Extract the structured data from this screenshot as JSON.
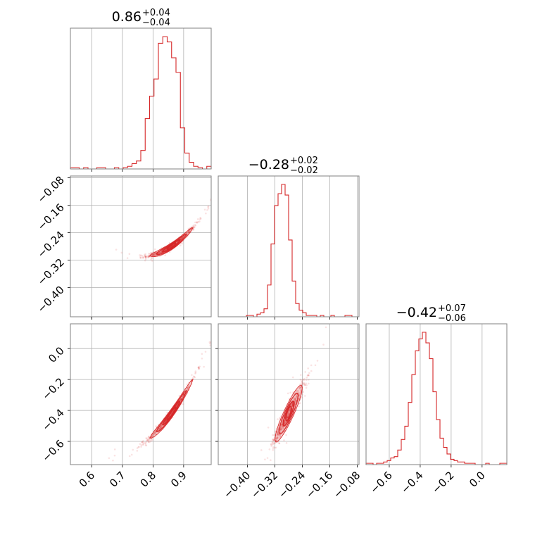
{
  "chart_data": {
    "type": "corner",
    "colors": {
      "main": "#d62728",
      "grid": "#b0b0b0",
      "frame": "#808080"
    },
    "grid": true,
    "params": [
      {
        "title": {
          "median": "0.86",
          "plus": "+0.04",
          "minus": "−0.04"
        },
        "range": [
          0.53,
          0.99
        ],
        "ticks": [
          0.6,
          0.7,
          0.8,
          0.9
        ],
        "tick_labels": [
          "0.6",
          "0.7",
          "0.8",
          "0.9"
        ]
      },
      {
        "title": {
          "median": "−0.28",
          "plus": "+0.02",
          "minus": "−0.02"
        },
        "range": [
          -0.485,
          -0.075
        ],
        "ticks": [
          -0.4,
          -0.32,
          -0.24,
          -0.16,
          -0.08
        ],
        "tick_labels": [
          "−0.40",
          "−0.32",
          "−0.24",
          "−0.16",
          "−0.08"
        ]
      },
      {
        "title": {
          "median": "−0.42",
          "plus": "+0.07",
          "minus": "−0.06"
        },
        "range": [
          -0.75,
          0.16
        ],
        "ticks": [
          -0.6,
          -0.4,
          -0.2,
          0.0
        ],
        "tick_labels": [
          "−0.6",
          "−0.4",
          "−0.2",
          "0.0"
        ]
      }
    ],
    "histograms": [
      {
        "param": 0,
        "range": [
          0.53,
          0.99
        ],
        "counts": [
          1,
          1,
          0,
          1,
          0,
          0,
          1,
          1,
          0,
          0,
          1,
          0,
          1,
          2,
          4,
          6,
          14,
          38,
          55,
          68,
          95,
          100,
          96,
          84,
          73,
          31,
          12,
          5,
          2,
          1,
          0,
          2
        ]
      },
      {
        "param": 1,
        "range": [
          -0.485,
          -0.075
        ],
        "counts": [
          0,
          0,
          0,
          0,
          0,
          0,
          0,
          0,
          1,
          1,
          0,
          2,
          3,
          6,
          24,
          55,
          84,
          93,
          100,
          92,
          58,
          27,
          10,
          5,
          3,
          1,
          1,
          1,
          0,
          1,
          0,
          0,
          1,
          0,
          0,
          0,
          1,
          1,
          0,
          0
        ]
      },
      {
        "param": 2,
        "range": [
          -0.75,
          0.16
        ],
        "counts": [
          1,
          1,
          0,
          1,
          1,
          2,
          3,
          5,
          6,
          11,
          19,
          29,
          47,
          68,
          86,
          95,
          100,
          92,
          80,
          55,
          34,
          20,
          13,
          8,
          4,
          3,
          2,
          2,
          1,
          1,
          1,
          0,
          0,
          0,
          1,
          0,
          0,
          0,
          1,
          1
        ]
      }
    ],
    "pairs": [
      {
        "x": 0,
        "y": 1,
        "relation": "y = -0.28 + 0.58*(x - 0.86) + 2.8*(x - 0.86)^2",
        "x_center": 0.86,
        "x_sd": 0.035,
        "y_scatter_sd": 0.004
      },
      {
        "x": 0,
        "y": 2,
        "relation": "y = -0.42 + 2.7*(x - 0.86) + 6.5*(x - 0.86)^2",
        "x_center": 0.86,
        "x_sd": 0.035,
        "y_scatter_sd": 0.012
      },
      {
        "x": 1,
        "y": 2,
        "relation": "y = -0.42 + 4.2*(x + 0.28)",
        "x_center": -0.28,
        "x_sd": 0.02,
        "y_scatter_sd": 0.03
      }
    ]
  }
}
